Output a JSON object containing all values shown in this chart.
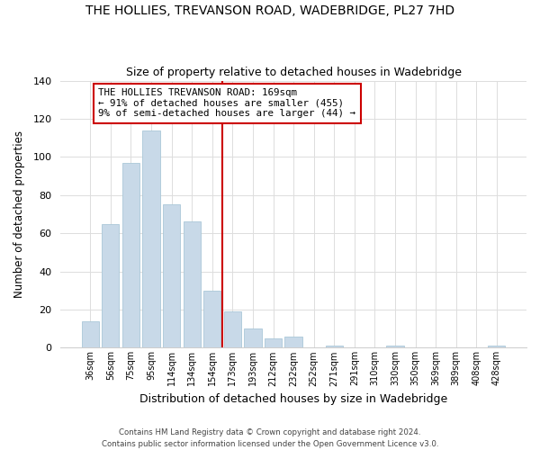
{
  "title": "THE HOLLIES, TREVANSON ROAD, WADEBRIDGE, PL27 7HD",
  "subtitle": "Size of property relative to detached houses in Wadebridge",
  "xlabel": "Distribution of detached houses by size in Wadebridge",
  "ylabel": "Number of detached properties",
  "bar_labels": [
    "36sqm",
    "56sqm",
    "75sqm",
    "95sqm",
    "114sqm",
    "134sqm",
    "154sqm",
    "173sqm",
    "193sqm",
    "212sqm",
    "232sqm",
    "252sqm",
    "271sqm",
    "291sqm",
    "310sqm",
    "330sqm",
    "350sqm",
    "369sqm",
    "389sqm",
    "408sqm",
    "428sqm"
  ],
  "bar_values": [
    14,
    65,
    97,
    114,
    75,
    66,
    30,
    19,
    10,
    5,
    6,
    0,
    1,
    0,
    0,
    1,
    0,
    0,
    0,
    0,
    1
  ],
  "bar_color": "#c8d9e8",
  "bar_edge_color": "#aac8d8",
  "vline_color": "#cc0000",
  "annotation_title": "THE HOLLIES TREVANSON ROAD: 169sqm",
  "annotation_line1": "← 91% of detached houses are smaller (455)",
  "annotation_line2": "9% of semi-detached houses are larger (44) →",
  "annotation_box_color": "#ffffff",
  "annotation_box_edge": "#cc0000",
  "footer1": "Contains HM Land Registry data © Crown copyright and database right 2024.",
  "footer2": "Contains public sector information licensed under the Open Government Licence v3.0.",
  "ylim": [
    0,
    140
  ],
  "yticks": [
    0,
    20,
    40,
    60,
    80,
    100,
    120,
    140
  ],
  "background_color": "#ffffff",
  "grid_color": "#dddddd"
}
